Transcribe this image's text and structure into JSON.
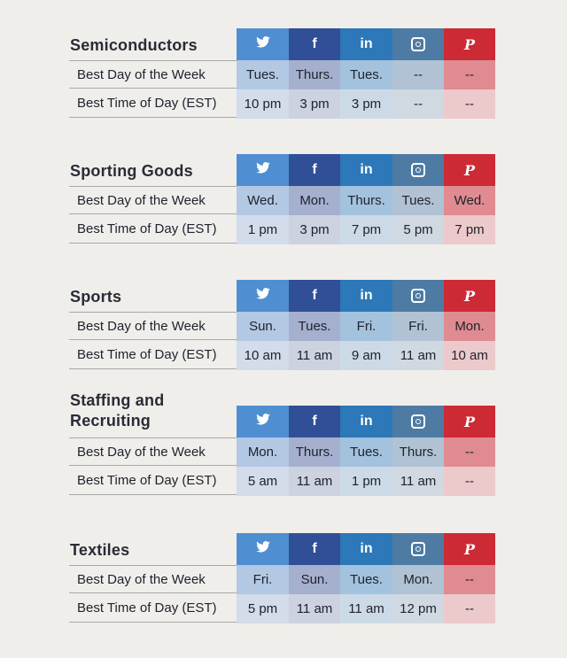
{
  "row_labels": {
    "day": "Best Day of the Week",
    "time": "Best Time of Day (EST)"
  },
  "icons": [
    "twitter-icon",
    "facebook-icon",
    "linkedin-icon",
    "instagram-icon",
    "pinterest-icon"
  ],
  "icon_glyphs": {
    "facebook": "f",
    "linkedin": "in",
    "pinterest": "P"
  },
  "colors": {
    "twitter": "#4f8fd1",
    "facebook": "#304f96",
    "linkedin": "#2c78b8",
    "instagram": "#4d7ba3",
    "pinterest": "#cc2a35"
  },
  "sections": [
    {
      "title_lines": [
        "Semiconductors"
      ],
      "day": [
        "Tues.",
        "Thurs.",
        "Tues.",
        "--",
        "--"
      ],
      "time": [
        "10 pm",
        "3 pm",
        "3 pm",
        "--",
        "--"
      ]
    },
    {
      "title_lines": [
        "Sporting Goods"
      ],
      "day": [
        "Wed.",
        "Mon.",
        "Thurs.",
        "Tues.",
        "Wed."
      ],
      "time": [
        "1 pm",
        "3 pm",
        "7 pm",
        "5 pm",
        "7 pm"
      ]
    },
    {
      "title_lines": [
        "Sports"
      ],
      "day": [
        "Sun.",
        "Tues.",
        "Fri.",
        "Fri.",
        "Mon."
      ],
      "time": [
        "10 am",
        "11 am",
        "9 am",
        "11 am",
        "10 am"
      ]
    },
    {
      "title_lines": [
        "Staffing and",
        "Recruiting"
      ],
      "day": [
        "Mon.",
        "Thurs.",
        "Tues.",
        "Thurs.",
        "--"
      ],
      "time": [
        "5 am",
        "11 am",
        "1 pm",
        "11 am",
        "--"
      ]
    },
    {
      "title_lines": [
        "Textiles"
      ],
      "day": [
        "Fri.",
        "Sun.",
        "Tues.",
        "Mon.",
        "--"
      ],
      "time": [
        "5 pm",
        "11 am",
        "11 am",
        "12 pm",
        "--"
      ]
    }
  ]
}
